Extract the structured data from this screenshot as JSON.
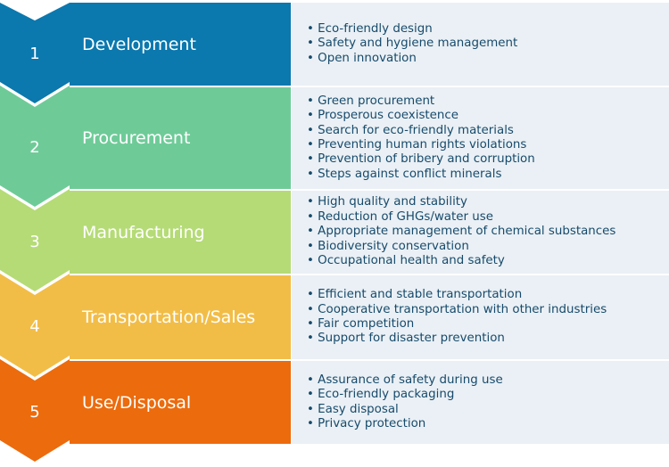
{
  "stages": [
    {
      "number": "1",
      "title": "Development",
      "color": "#0b78ae",
      "chevron_color": "#0b78ae",
      "items": [
        "Eco-friendly design",
        "Safety and hygiene management",
        "Open innovation"
      ]
    },
    {
      "number": "2",
      "title": "Procurement",
      "color": "#6ecb98",
      "chevron_color": "#6ecb98",
      "items": [
        "Green procurement",
        "Prosperous coexistence",
        "Search for eco-friendly materials",
        "Preventing human rights violations",
        "Prevention of bribery and corruption",
        "Steps against conflict minerals"
      ]
    },
    {
      "number": "3",
      "title": "Manufacturing",
      "color": "#b5db76",
      "chevron_color": "#b5db76",
      "items": [
        "High quality and stability",
        "Reduction of GHGs/water use",
        "Appropriate management of chemical substances",
        "Biodiversity conservation",
        "Occupational health and safety"
      ]
    },
    {
      "number": "4",
      "title": "Transportation/Sales",
      "color": "#f2bd47",
      "chevron_color": "#f2bd47",
      "items": [
        "Efficient and stable transportation",
        "Cooperative transportation with other industries",
        "Fair competition",
        "Support for disaster prevention"
      ]
    },
    {
      "number": "5",
      "title": "Use/Disposal",
      "color": "#ec6b0d",
      "chevron_color": "#ec6b0d",
      "items": [
        "Assurance of safety during use",
        "Eco-friendly packaging",
        "Easy disposal",
        "Privacy protection"
      ]
    }
  ]
}
